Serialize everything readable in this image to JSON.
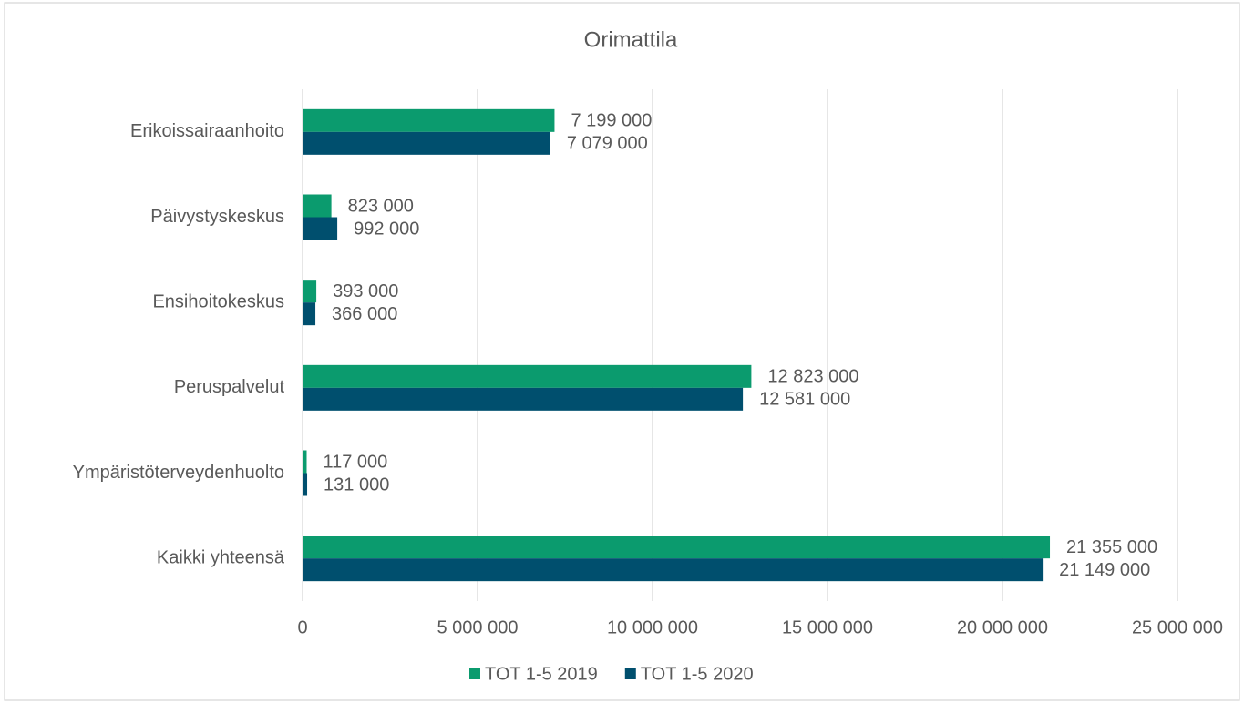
{
  "chart_data": {
    "type": "bar",
    "orientation": "horizontal",
    "title": "Orimattila",
    "categories": [
      "Erikoissairaanhoito",
      "Päivystyskeskus",
      "Ensihoitokeskus",
      "Peruspalvelut",
      "Ympäristöterveydenhuolto",
      "Kaikki yhteensä"
    ],
    "series": [
      {
        "name": "TOT 1-5 2019",
        "color": "#0b9b6e",
        "values": [
          7199000,
          823000,
          393000,
          12823000,
          117000,
          21355000
        ],
        "value_labels": [
          "7 199 000",
          "823 000",
          "393 000",
          "12 823 000",
          "117 000",
          "21 355 000"
        ]
      },
      {
        "name": "TOT 1-5 2020",
        "color": "#004f6e",
        "values": [
          7079000,
          992000,
          366000,
          12581000,
          131000,
          21149000
        ],
        "value_labels": [
          "7 079 000",
          "992 000",
          "366 000",
          "12 581 000",
          "131 000",
          "21 149 000"
        ]
      }
    ],
    "xlim": [
      0,
      25000000
    ],
    "xticks": [
      0,
      {
        "value": 5000000,
        "label": "5 000 000"
      },
      {
        "value": 10000000,
        "label": "10 000 000"
      },
      {
        "value": 15000000,
        "label": "15 000 000"
      },
      {
        "value": 20000000,
        "label": "20 000 000"
      },
      {
        "value": 25000000,
        "label": "25 000 000"
      }
    ],
    "grid": true,
    "legend": "bottom"
  }
}
